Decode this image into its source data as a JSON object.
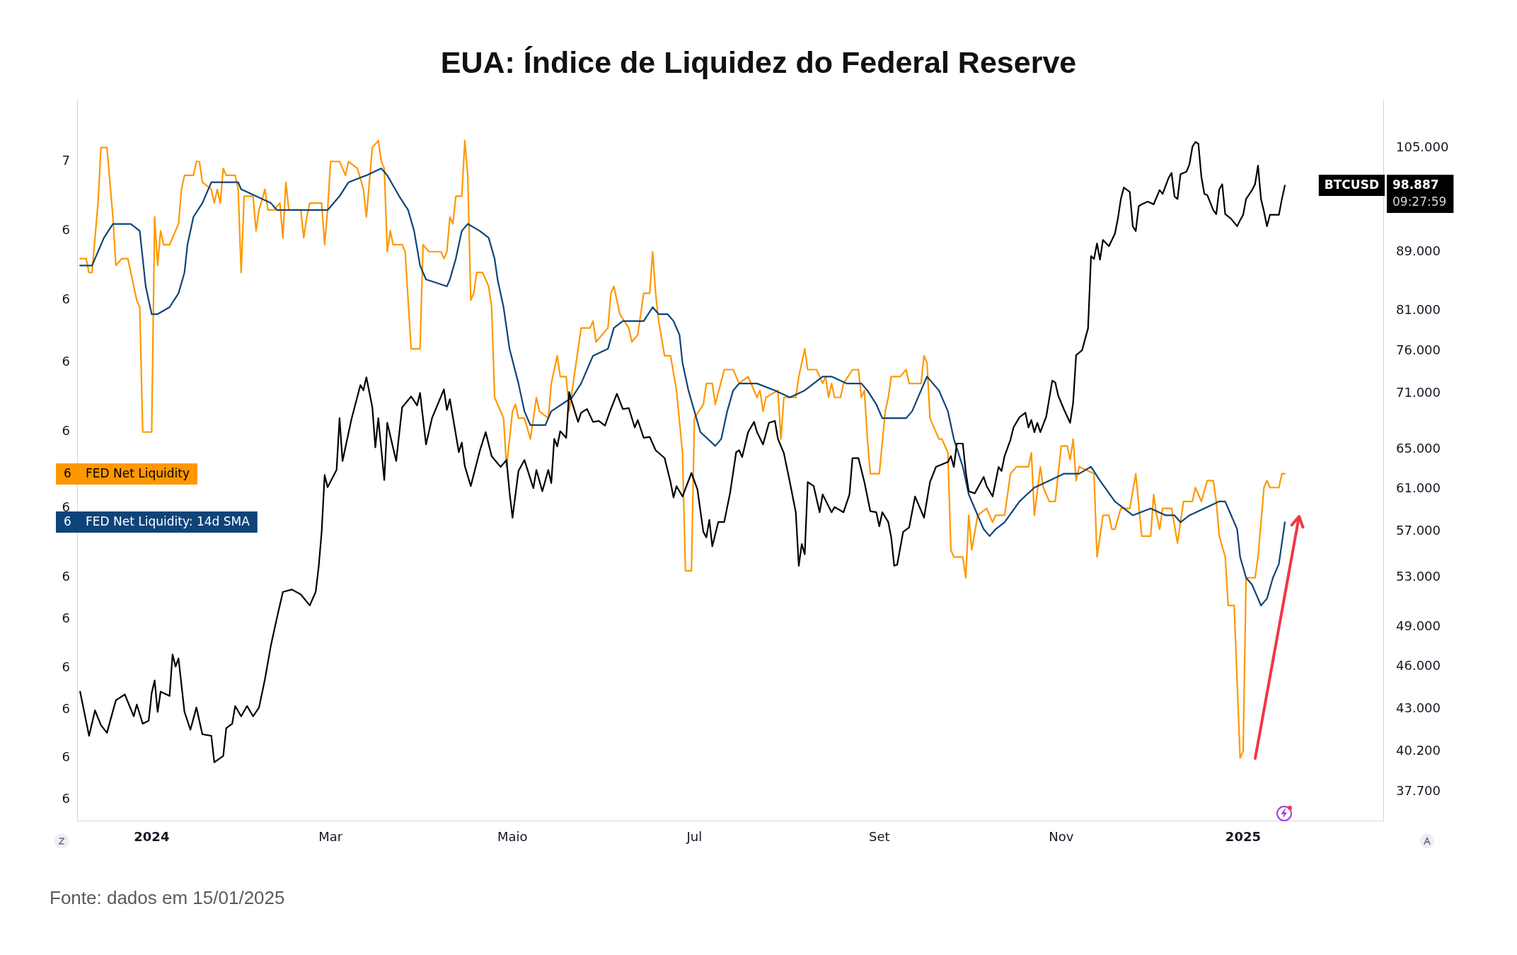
{
  "chart_data": {
    "type": "line",
    "title": "EUA: Índice de Liquidez do Federal Reserve",
    "xlim": [
      "2023-12-07",
      "2025-02-17"
    ],
    "xticks": [
      {
        "value": "2024-01-01",
        "label": "2024"
      },
      {
        "value": "2024-03-01",
        "label": "Mar"
      },
      {
        "value": "2024-05-01",
        "label": "Maio"
      },
      {
        "value": "2024-07-01",
        "label": "Jul"
      },
      {
        "value": "2024-09-01",
        "label": "Set"
      },
      {
        "value": "2024-11-01",
        "label": "Nov"
      },
      {
        "value": "2025-01-01",
        "label": "2025"
      }
    ],
    "ylim": [
      5.6,
      6.64
    ],
    "yticks": [
      {
        "value": 6.55,
        "label": "7"
      },
      {
        "value": 6.45,
        "label": "6"
      },
      {
        "value": 6.35,
        "label": "6"
      },
      {
        "value": 6.26,
        "label": "6"
      },
      {
        "value": 6.16,
        "label": "6"
      },
      {
        "value": 6.05,
        "label": "6"
      },
      {
        "value": 5.95,
        "label": "6"
      },
      {
        "value": 5.89,
        "label": "6"
      },
      {
        "value": 5.82,
        "label": "6"
      },
      {
        "value": 5.76,
        "label": "6"
      },
      {
        "value": 5.69,
        "label": "6"
      },
      {
        "value": 5.63,
        "label": "6"
      }
    ],
    "y2lim": [
      36000,
      113500
    ],
    "y2ticks": [
      {
        "value": 105000,
        "label": "105.000"
      },
      {
        "value": 89000,
        "label": "89.000"
      },
      {
        "value": 81000,
        "label": "81.000"
      },
      {
        "value": 76000,
        "label": "76.000"
      },
      {
        "value": 71000,
        "label": "71.000"
      },
      {
        "value": 65000,
        "label": "65.000"
      },
      {
        "value": 61000,
        "label": "61.000"
      },
      {
        "value": 57000,
        "label": "57.000"
      },
      {
        "value": 53000,
        "label": "53.000"
      },
      {
        "value": 49000,
        "label": "49.000"
      },
      {
        "value": 46000,
        "label": "46.000"
      },
      {
        "value": 43000,
        "label": "43.000"
      },
      {
        "value": 40200,
        "label": "40.200"
      },
      {
        "value": 37700,
        "label": "37.700"
      }
    ],
    "log": "y2",
    "series": [
      {
        "name": "FED Net Liquidity",
        "color": "#ff9800",
        "x": [
          "2023-12-08",
          "2023-12-10",
          "2023-12-11",
          "2023-12-12",
          "2023-12-14",
          "2023-12-15",
          "2023-12-17",
          "2023-12-19",
          "2023-12-20",
          "2023-12-22",
          "2023-12-24",
          "2023-12-27",
          "2023-12-28",
          "2023-12-29",
          "2024-01-01",
          "2024-01-02",
          "2024-01-03",
          "2024-01-04",
          "2024-01-05",
          "2024-01-07",
          "2024-01-10",
          "2024-01-11",
          "2024-01-12",
          "2024-01-15",
          "2024-01-16",
          "2024-01-17",
          "2024-01-18",
          "2024-01-21",
          "2024-01-22",
          "2024-01-23",
          "2024-01-24",
          "2024-01-25",
          "2024-01-26",
          "2024-01-29",
          "2024-01-30",
          "2024-01-31",
          "2024-02-01",
          "2024-02-04",
          "2024-02-05",
          "2024-02-06",
          "2024-02-08",
          "2024-02-09",
          "2024-02-11",
          "2024-02-13",
          "2024-02-14",
          "2024-02-15",
          "2024-02-16",
          "2024-02-20",
          "2024-02-21",
          "2024-02-22",
          "2024-02-23",
          "2024-02-27",
          "2024-02-28",
          "2024-02-29",
          "2024-03-01",
          "2024-03-04",
          "2024-03-06",
          "2024-03-07",
          "2024-03-10",
          "2024-03-12",
          "2024-03-13",
          "2024-03-15",
          "2024-03-17",
          "2024-03-18",
          "2024-03-19",
          "2024-03-20",
          "2024-03-21",
          "2024-03-22",
          "2024-03-25",
          "2024-03-26",
          "2024-03-28",
          "2024-03-31",
          "2024-04-01",
          "2024-04-03",
          "2024-04-07",
          "2024-04-08",
          "2024-04-09",
          "2024-04-10",
          "2024-04-11",
          "2024-04-12",
          "2024-04-14",
          "2024-04-15",
          "2024-04-16",
          "2024-04-17",
          "2024-04-18",
          "2024-04-19",
          "2024-04-21",
          "2024-04-23",
          "2024-04-24",
          "2024-04-25",
          "2024-04-26",
          "2024-04-28",
          "2024-04-29",
          "2024-05-01",
          "2024-05-02",
          "2024-05-03",
          "2024-05-05",
          "2024-05-07",
          "2024-05-09",
          "2024-05-10",
          "2024-05-13",
          "2024-05-14",
          "2024-05-16",
          "2024-05-17",
          "2024-05-19",
          "2024-05-20",
          "2024-05-22",
          "2024-05-24",
          "2024-05-27",
          "2024-05-28",
          "2024-05-29",
          "2024-05-31",
          "2024-06-02",
          "2024-06-03",
          "2024-06-04",
          "2024-06-06",
          "2024-06-09",
          "2024-06-10",
          "2024-06-12",
          "2024-06-14",
          "2024-06-16",
          "2024-06-17",
          "2024-06-18",
          "2024-06-19",
          "2024-06-21",
          "2024-06-23",
          "2024-06-25",
          "2024-06-27",
          "2024-06-28",
          "2024-06-30",
          "2024-07-01",
          "2024-07-04",
          "2024-07-05",
          "2024-07-07",
          "2024-07-08",
          "2024-07-11",
          "2024-07-14",
          "2024-07-16",
          "2024-07-19",
          "2024-07-22",
          "2024-07-23",
          "2024-07-24",
          "2024-07-25",
          "2024-07-29",
          "2024-07-30",
          "2024-07-31",
          "2024-08-04",
          "2024-08-05",
          "2024-08-07",
          "2024-08-08",
          "2024-08-11",
          "2024-08-13",
          "2024-08-14",
          "2024-08-15",
          "2024-08-16",
          "2024-08-17",
          "2024-08-19",
          "2024-08-20",
          "2024-08-23",
          "2024-08-25",
          "2024-08-26",
          "2024-08-27",
          "2024-08-28",
          "2024-08-29",
          "2024-09-01",
          "2024-09-03",
          "2024-09-04",
          "2024-09-05",
          "2024-09-08",
          "2024-09-10",
          "2024-09-11",
          "2024-09-15",
          "2024-09-16",
          "2024-09-17",
          "2024-09-18",
          "2024-09-21",
          "2024-09-22",
          "2024-09-24",
          "2024-09-25",
          "2024-09-26",
          "2024-09-29",
          "2024-09-30",
          "2024-10-01",
          "2024-10-02",
          "2024-10-04",
          "2024-10-07",
          "2024-10-09",
          "2024-10-10",
          "2024-10-13",
          "2024-10-15",
          "2024-10-17",
          "2024-10-21",
          "2024-10-22",
          "2024-10-23",
          "2024-10-25",
          "2024-10-26",
          "2024-10-28",
          "2024-10-30",
          "2024-11-01",
          "2024-11-03",
          "2024-11-04",
          "2024-11-05",
          "2024-11-06",
          "2024-11-07",
          "2024-11-12",
          "2024-11-13",
          "2024-11-15",
          "2024-11-17",
          "2024-11-18",
          "2024-11-19",
          "2024-11-21",
          "2024-11-24",
          "2024-11-26",
          "2024-11-28",
          "2024-12-01",
          "2024-12-02",
          "2024-12-03",
          "2024-12-04",
          "2024-12-05",
          "2024-12-08",
          "2024-12-10",
          "2024-12-12",
          "2024-12-15",
          "2024-12-16",
          "2024-12-18",
          "2024-12-20",
          "2024-12-22",
          "2024-12-23",
          "2024-12-24",
          "2024-12-26",
          "2024-12-27",
          "2024-12-29",
          "2024-12-31",
          "2025-01-01",
          "2025-01-02",
          "2025-01-05",
          "2025-01-06",
          "2025-01-08",
          "2025-01-09",
          "2025-01-10",
          "2025-01-12",
          "2025-01-13",
          "2025-01-14",
          "2025-01-15"
        ],
        "values": [
          6.41,
          6.41,
          6.39,
          6.39,
          6.49,
          6.57,
          6.57,
          6.47,
          6.4,
          6.41,
          6.41,
          6.35,
          6.34,
          6.16,
          6.16,
          6.47,
          6.4,
          6.45,
          6.43,
          6.43,
          6.46,
          6.51,
          6.53,
          6.53,
          6.55,
          6.55,
          6.52,
          6.51,
          6.49,
          6.51,
          6.49,
          6.54,
          6.53,
          6.53,
          6.51,
          6.39,
          6.5,
          6.5,
          6.45,
          6.48,
          6.51,
          6.48,
          6.48,
          6.49,
          6.44,
          6.52,
          6.48,
          6.48,
          6.44,
          6.47,
          6.49,
          6.49,
          6.43,
          6.48,
          6.55,
          6.55,
          6.53,
          6.55,
          6.54,
          6.51,
          6.47,
          6.57,
          6.58,
          6.55,
          6.54,
          6.42,
          6.45,
          6.43,
          6.43,
          6.42,
          6.28,
          6.28,
          6.43,
          6.42,
          6.42,
          6.41,
          6.42,
          6.47,
          6.46,
          6.5,
          6.5,
          6.58,
          6.53,
          6.35,
          6.36,
          6.39,
          6.39,
          6.37,
          6.34,
          6.21,
          6.2,
          6.18,
          6.11,
          6.19,
          6.2,
          6.18,
          6.18,
          6.15,
          6.21,
          6.19,
          6.18,
          6.23,
          6.27,
          6.24,
          6.24,
          6.19,
          6.25,
          6.31,
          6.31,
          6.32,
          6.29,
          6.3,
          6.31,
          6.36,
          6.37,
          6.33,
          6.31,
          6.29,
          6.3,
          6.36,
          6.36,
          6.42,
          6.36,
          6.32,
          6.27,
          6.27,
          6.22,
          6.13,
          5.96,
          5.96,
          6.18,
          6.2,
          6.23,
          6.23,
          6.2,
          6.25,
          6.25,
          6.23,
          6.24,
          6.21,
          6.22,
          6.19,
          6.21,
          6.22,
          6.15,
          6.21,
          6.21,
          6.24,
          6.28,
          6.25,
          6.25,
          6.23,
          6.24,
          6.21,
          6.23,
          6.21,
          6.21,
          6.23,
          6.25,
          6.25,
          6.21,
          6.22,
          6.15,
          6.1,
          6.1,
          6.19,
          6.21,
          6.24,
          6.24,
          6.25,
          6.23,
          6.23,
          6.27,
          6.26,
          6.18,
          6.15,
          6.15,
          6.13,
          5.99,
          5.98,
          5.98,
          5.95,
          6.04,
          5.99,
          6.04,
          6.05,
          6.03,
          6.04,
          6.04,
          6.1,
          6.11,
          6.11,
          6.13,
          6.04,
          6.11,
          6.08,
          6.06,
          6.06,
          6.14,
          6.14,
          6.12,
          6.15,
          6.09,
          6.11,
          6.1,
          5.98,
          6.04,
          6.04,
          6.02,
          6.02,
          6.05,
          6.05,
          6.1,
          6.01,
          6.01,
          6.07,
          6.04,
          6.02,
          6.05,
          6.05,
          6.0,
          6.06,
          6.06,
          6.08,
          6.06,
          6.09,
          6.09,
          6.06,
          6.01,
          5.98,
          5.91,
          5.91,
          5.69,
          5.7,
          5.95,
          5.95,
          5.98,
          6.08,
          6.09,
          6.08,
          6.08,
          6.08,
          6.1,
          6.1
        ]
      },
      {
        "name": "FED Net Liquidity: 14d SMA",
        "color": "#0e4479",
        "x": [
          "2023-12-08",
          "2023-12-12",
          "2023-12-16",
          "2023-12-19",
          "2023-12-25",
          "2023-12-28",
          "2023-12-29",
          "2023-12-30",
          "2024-01-01",
          "2024-01-03",
          "2024-01-07",
          "2024-01-10",
          "2024-01-12",
          "2024-01-13",
          "2024-01-15",
          "2024-01-18",
          "2024-01-21",
          "2024-01-25",
          "2024-01-30",
          "2024-01-31",
          "2024-02-05",
          "2024-02-10",
          "2024-02-12",
          "2024-02-15",
          "2024-02-20",
          "2024-02-22",
          "2024-02-29",
          "2024-03-04",
          "2024-03-07",
          "2024-03-13",
          "2024-03-18",
          "2024-03-20",
          "2024-03-24",
          "2024-03-27",
          "2024-03-29",
          "2024-03-31",
          "2024-04-02",
          "2024-04-09",
          "2024-04-10",
          "2024-04-12",
          "2024-04-14",
          "2024-04-16",
          "2024-04-20",
          "2024-04-23",
          "2024-04-25",
          "2024-04-26",
          "2024-04-28",
          "2024-04-30",
          "2024-05-03",
          "2024-05-05",
          "2024-05-07",
          "2024-05-12",
          "2024-05-14",
          "2024-05-21",
          "2024-05-24",
          "2024-05-26",
          "2024-05-28",
          "2024-06-02",
          "2024-06-04",
          "2024-06-07",
          "2024-06-10",
          "2024-06-14",
          "2024-06-17",
          "2024-06-19",
          "2024-06-22",
          "2024-06-24",
          "2024-06-26",
          "2024-06-27",
          "2024-06-29",
          "2024-07-01",
          "2024-07-03",
          "2024-07-08",
          "2024-07-10",
          "2024-07-12",
          "2024-07-14",
          "2024-07-16",
          "2024-07-22",
          "2024-07-28",
          "2024-08-02",
          "2024-08-07",
          "2024-08-13",
          "2024-08-16",
          "2024-08-21",
          "2024-08-26",
          "2024-08-28",
          "2024-08-31",
          "2024-09-02",
          "2024-09-05",
          "2024-09-08",
          "2024-09-10",
          "2024-09-12",
          "2024-09-15",
          "2024-09-17",
          "2024-09-19",
          "2024-09-21",
          "2024-09-24",
          "2024-09-26",
          "2024-09-29",
          "2024-10-01",
          "2024-10-04",
          "2024-10-06",
          "2024-10-08",
          "2024-10-10",
          "2024-10-13",
          "2024-10-18",
          "2024-10-23",
          "2024-10-28",
          "2024-11-02",
          "2024-11-07",
          "2024-11-11",
          "2024-11-14",
          "2024-11-19",
          "2024-11-25",
          "2024-12-01",
          "2024-12-06",
          "2024-12-09",
          "2024-12-11",
          "2024-12-14",
          "2024-12-19",
          "2024-12-24",
          "2024-12-26",
          "2024-12-28",
          "2024-12-30",
          "2024-12-31",
          "2025-01-02",
          "2025-01-04",
          "2025-01-06",
          "2025-01-07",
          "2025-01-09",
          "2025-01-11",
          "2025-01-13",
          "2025-01-14",
          "2025-01-15"
        ],
        "values": [
          6.4,
          6.4,
          6.44,
          6.46,
          6.46,
          6.45,
          6.41,
          6.37,
          6.33,
          6.33,
          6.34,
          6.36,
          6.39,
          6.43,
          6.47,
          6.49,
          6.52,
          6.52,
          6.52,
          6.51,
          6.5,
          6.49,
          6.48,
          6.48,
          6.48,
          6.48,
          6.48,
          6.5,
          6.52,
          6.53,
          6.54,
          6.53,
          6.5,
          6.48,
          6.45,
          6.4,
          6.38,
          6.37,
          6.38,
          6.41,
          6.45,
          6.46,
          6.45,
          6.44,
          6.41,
          6.38,
          6.34,
          6.28,
          6.23,
          6.19,
          6.17,
          6.17,
          6.19,
          6.21,
          6.23,
          6.25,
          6.27,
          6.28,
          6.31,
          6.32,
          6.32,
          6.32,
          6.34,
          6.33,
          6.33,
          6.32,
          6.3,
          6.26,
          6.22,
          6.19,
          6.16,
          6.14,
          6.15,
          6.19,
          6.22,
          6.23,
          6.23,
          6.22,
          6.21,
          6.22,
          6.24,
          6.24,
          6.23,
          6.23,
          6.22,
          6.2,
          6.18,
          6.18,
          6.18,
          6.18,
          6.19,
          6.22,
          6.24,
          6.23,
          6.22,
          6.19,
          6.15,
          6.11,
          6.07,
          6.04,
          6.02,
          6.01,
          6.02,
          6.03,
          6.06,
          6.08,
          6.09,
          6.1,
          6.1,
          6.11,
          6.09,
          6.06,
          6.04,
          6.05,
          6.04,
          6.04,
          6.03,
          6.04,
          6.05,
          6.06,
          6.06,
          6.04,
          6.02,
          5.98,
          5.95,
          5.94,
          5.92,
          5.91,
          5.92,
          5.95,
          5.97,
          6.0,
          6.03
        ]
      },
      {
        "name": "BTCUSD",
        "color": "#000000",
        "axis": "y2",
        "x": [
          "2023-12-08",
          "2023-12-11",
          "2023-12-13",
          "2023-12-15",
          "2023-12-17",
          "2023-12-20",
          "2023-12-23",
          "2023-12-26",
          "2023-12-27",
          "2023-12-29",
          "2023-12-31",
          "2024-01-01",
          "2024-01-02",
          "2024-01-03",
          "2024-01-04",
          "2024-01-07",
          "2024-01-08",
          "2024-01-09",
          "2024-01-10",
          "2024-01-12",
          "2024-01-14",
          "2024-01-16",
          "2024-01-18",
          "2024-01-21",
          "2024-01-22",
          "2024-01-25",
          "2024-01-26",
          "2024-01-28",
          "2024-01-29",
          "2024-01-31",
          "2024-02-02",
          "2024-02-04",
          "2024-02-06",
          "2024-02-08",
          "2024-02-10",
          "2024-02-12",
          "2024-02-14",
          "2024-02-17",
          "2024-02-20",
          "2024-02-23",
          "2024-02-25",
          "2024-02-26",
          "2024-02-27",
          "2024-02-28",
          "2024-02-29",
          "2024-03-03",
          "2024-03-04",
          "2024-03-05",
          "2024-03-08",
          "2024-03-11",
          "2024-03-12",
          "2024-03-13",
          "2024-03-15",
          "2024-03-16",
          "2024-03-17",
          "2024-03-19",
          "2024-03-20",
          "2024-03-23",
          "2024-03-25",
          "2024-03-28",
          "2024-03-30",
          "2024-03-31",
          "2024-04-02",
          "2024-04-04",
          "2024-04-08",
          "2024-04-09",
          "2024-04-10",
          "2024-04-13",
          "2024-04-14",
          "2024-04-15",
          "2024-04-17",
          "2024-04-20",
          "2024-04-22",
          "2024-04-24",
          "2024-04-27",
          "2024-04-29",
          "2024-04-30",
          "2024-05-01",
          "2024-05-03",
          "2024-05-05",
          "2024-05-08",
          "2024-05-09",
          "2024-05-11",
          "2024-05-13",
          "2024-05-14",
          "2024-05-15",
          "2024-05-16",
          "2024-05-17",
          "2024-05-19",
          "2024-05-20",
          "2024-05-21",
          "2024-05-23",
          "2024-05-24",
          "2024-05-26",
          "2024-05-28",
          "2024-05-30",
          "2024-06-01",
          "2024-06-03",
          "2024-06-05",
          "2024-06-07",
          "2024-06-09",
          "2024-06-11",
          "2024-06-12",
          "2024-06-14",
          "2024-06-16",
          "2024-06-18",
          "2024-06-21",
          "2024-06-23",
          "2024-06-24",
          "2024-06-25",
          "2024-06-27",
          "2024-06-30",
          "2024-07-02",
          "2024-07-04",
          "2024-07-05",
          "2024-07-06",
          "2024-07-07",
          "2024-07-09",
          "2024-07-11",
          "2024-07-13",
          "2024-07-15",
          "2024-07-16",
          "2024-07-17",
          "2024-07-19",
          "2024-07-21",
          "2024-07-22",
          "2024-07-24",
          "2024-07-26",
          "2024-07-28",
          "2024-07-29",
          "2024-07-31",
          "2024-08-02",
          "2024-08-04",
          "2024-08-05",
          "2024-08-06",
          "2024-08-07",
          "2024-08-08",
          "2024-08-10",
          "2024-08-12",
          "2024-08-13",
          "2024-08-16",
          "2024-08-17",
          "2024-08-20",
          "2024-08-22",
          "2024-08-23",
          "2024-08-25",
          "2024-08-27",
          "2024-08-29",
          "2024-08-31",
          "2024-09-01",
          "2024-09-02",
          "2024-09-04",
          "2024-09-05",
          "2024-09-06",
          "2024-09-07",
          "2024-09-09",
          "2024-09-11",
          "2024-09-13",
          "2024-09-16",
          "2024-09-18",
          "2024-09-20",
          "2024-09-24",
          "2024-09-25",
          "2024-09-26",
          "2024-09-27",
          "2024-09-29",
          "2024-09-30",
          "2024-10-01",
          "2024-10-03",
          "2024-10-06",
          "2024-10-07",
          "2024-10-09",
          "2024-10-11",
          "2024-10-12",
          "2024-10-13",
          "2024-10-15",
          "2024-10-16",
          "2024-10-18",
          "2024-10-20",
          "2024-10-21",
          "2024-10-22",
          "2024-10-23",
          "2024-10-24",
          "2024-10-25",
          "2024-10-27",
          "2024-10-29",
          "2024-10-30",
          "2024-10-31",
          "2024-11-02",
          "2024-11-04",
          "2024-11-05",
          "2024-11-06",
          "2024-11-08",
          "2024-11-10",
          "2024-11-11",
          "2024-11-12",
          "2024-11-13",
          "2024-11-14",
          "2024-11-15",
          "2024-11-17",
          "2024-11-19",
          "2024-11-20",
          "2024-11-21",
          "2024-11-22",
          "2024-11-24",
          "2024-11-25",
          "2024-11-26",
          "2024-11-27",
          "2024-11-28",
          "2024-11-30",
          "2024-12-02",
          "2024-12-04",
          "2024-12-05",
          "2024-12-07",
          "2024-12-08",
          "2024-12-09",
          "2024-12-10",
          "2024-12-11",
          "2024-12-13",
          "2024-12-14",
          "2024-12-15",
          "2024-12-16",
          "2024-12-17",
          "2024-12-18",
          "2024-12-19",
          "2024-12-20",
          "2024-12-22",
          "2024-12-23",
          "2024-12-24",
          "2024-12-25",
          "2024-12-26",
          "2024-12-28",
          "2024-12-30",
          "2024-12-31",
          "2025-01-01",
          "2025-01-02",
          "2025-01-04",
          "2025-01-05",
          "2025-01-06",
          "2025-01-07",
          "2025-01-08",
          "2025-01-09",
          "2025-01-10",
          "2025-01-13",
          "2025-01-14",
          "2025-01-15"
        ],
        "values": [
          44200,
          41200,
          42900,
          41900,
          41400,
          43600,
          44000,
          42500,
          43300,
          42000,
          42200,
          44100,
          45000,
          42800,
          44200,
          43900,
          46900,
          46000,
          46600,
          42800,
          41600,
          43100,
          41300,
          41200,
          39500,
          39900,
          41700,
          42000,
          43200,
          42500,
          43200,
          42500,
          43100,
          45100,
          47600,
          49700,
          51800,
          52000,
          51600,
          50700,
          51800,
          53900,
          57000,
          62400,
          61200,
          62900,
          68300,
          63800,
          68200,
          72000,
          71400,
          72900,
          69500,
          65200,
          68300,
          61900,
          67800,
          63800,
          69500,
          70700,
          69700,
          71100,
          65500,
          68300,
          71500,
          69200,
          70400,
          64700,
          65700,
          63300,
          61300,
          64800,
          66800,
          64300,
          63200,
          63900,
          60700,
          58300,
          62800,
          63900,
          61100,
          62900,
          60800,
          62900,
          61600,
          66100,
          65300,
          66900,
          66200,
          71200,
          70000,
          67900,
          68900,
          69300,
          67900,
          68000,
          67500,
          69300,
          71000,
          69300,
          69400,
          67300,
          68100,
          66200,
          66300,
          64900,
          64100,
          61700,
          60200,
          61300,
          60300,
          62600,
          61000,
          57000,
          56500,
          58100,
          55700,
          57900,
          57900,
          60700,
          64700,
          64900,
          64200,
          66800,
          67900,
          66800,
          65500,
          67800,
          68000,
          66100,
          64600,
          61700,
          58800,
          54000,
          55900,
          55000,
          61700,
          61300,
          58800,
          60500,
          58800,
          59300,
          58800,
          60500,
          64100,
          64100,
          61700,
          58900,
          58800,
          57500,
          58800,
          57900,
          56500,
          54000,
          54100,
          57000,
          57400,
          60300,
          58300,
          61700,
          63200,
          63700,
          64300,
          63200,
          65600,
          65600,
          62700,
          60800,
          60600,
          62200,
          61300,
          60300,
          63200,
          62800,
          64300,
          66000,
          67300,
          68400,
          68900,
          67300,
          68100,
          66800,
          67800,
          66800,
          68500,
          72500,
          72300,
          70800,
          69200,
          67800,
          70000,
          75500,
          76100,
          78800,
          88400,
          88000,
          90200,
          87900,
          90700,
          89800,
          91600,
          93800,
          96800,
          98600,
          97900,
          92700,
          92000,
          95700,
          96000,
          96400,
          96000,
          98200,
          97600,
          100100,
          100900,
          97200,
          96800,
          100700,
          101100,
          102300,
          105200,
          106000,
          105700,
          100300,
          97600,
          97400,
          95100,
          94500,
          98300,
          99100,
          94500,
          93800,
          92700,
          93600,
          94400,
          96800,
          98200,
          99100,
          102100,
          96800,
          94900,
          92700,
          94400,
          94400,
          96800,
          98887
        ]
      }
    ],
    "annotations": [
      "6",
      "6",
      "98.887",
      "09:27:59",
      "Fonte: dados em 15/01/2025"
    ]
  }
}
